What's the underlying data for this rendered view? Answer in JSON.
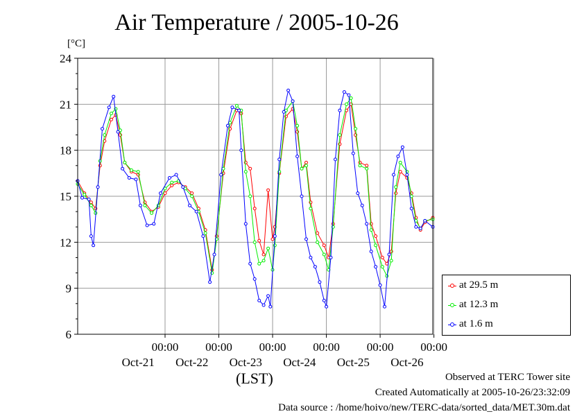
{
  "title": "Air Temperature / 2005-10-26",
  "unit_label": "[°C]",
  "xlabel": "(LST)",
  "footer": {
    "line1": "Observed at TERC Tower site",
    "line2": "Created Automatically at 2005-10-26/23:32:09",
    "line3": "Data source : /home/hoivo/new/TERC-data/sorted_data/MET.30m.dat"
  },
  "colors": {
    "s1": "#ff0000",
    "s2": "#00ee00",
    "s3": "#0000ff",
    "grid": "#999999"
  },
  "chart_data": {
    "type": "line",
    "title": "Air Temperature / 2005-10-26",
    "xlabel": "(LST)",
    "ylabel": "[°C]",
    "ylim": [
      6,
      24
    ],
    "yticks": [
      6,
      9,
      12,
      15,
      18,
      21,
      24
    ],
    "xlim": [
      "2005-10-20T09:00",
      "2005-10-26T23:30"
    ],
    "xticks": [
      {
        "x": "2005-10-22T00:00",
        "time": "00:00",
        "date": "Oct-21"
      },
      {
        "x": "2005-10-23T00:00",
        "time": "00:00",
        "date": "Oct-22"
      },
      {
        "x": "2005-10-24T00:00",
        "time": "00:00",
        "date": "Oct-23"
      },
      {
        "x": "2005-10-25T00:00",
        "time": "00:00",
        "date": "Oct-24"
      },
      {
        "x": "2005-10-26T00:00",
        "time": "00:00",
        "date": "Oct-25"
      },
      {
        "x": "2005-10-27T00:00",
        "time": "00:00",
        "date": "Oct-26"
      }
    ],
    "grid": true,
    "legend_position": "right",
    "series": [
      {
        "name": "at 29.5 m",
        "color": "#ff0000",
        "points": [
          [
            "2005-10-20T09:00",
            16.0
          ],
          [
            "2005-10-20T12:00",
            15.2
          ],
          [
            "2005-10-20T15:00",
            14.6
          ],
          [
            "2005-10-20T17:00",
            14.2
          ],
          [
            "2005-10-20T19:00",
            17.0
          ],
          [
            "2005-10-20T21:00",
            18.6
          ],
          [
            "2005-10-21T00:00",
            20.0
          ],
          [
            "2005-10-21T02:00",
            20.3
          ],
          [
            "2005-10-21T04:00",
            19.0
          ],
          [
            "2005-10-21T06:00",
            17.2
          ],
          [
            "2005-10-21T09:00",
            16.6
          ],
          [
            "2005-10-21T12:00",
            16.4
          ],
          [
            "2005-10-21T15:00",
            14.6
          ],
          [
            "2005-10-21T18:00",
            14.0
          ],
          [
            "2005-10-21T21:00",
            14.3
          ],
          [
            "2005-10-22T00:00",
            15.2
          ],
          [
            "2005-10-22T03:00",
            15.7
          ],
          [
            "2005-10-22T06:00",
            15.9
          ],
          [
            "2005-10-22T09:00",
            15.6
          ],
          [
            "2005-10-22T12:00",
            15.2
          ],
          [
            "2005-10-22T15:00",
            14.2
          ],
          [
            "2005-10-22T18:00",
            12.8
          ],
          [
            "2005-10-22T21:00",
            10.2
          ],
          [
            "2005-10-22T23:00",
            12.4
          ],
          [
            "2005-10-23T02:00",
            16.5
          ],
          [
            "2005-10-23T05:00",
            19.4
          ],
          [
            "2005-10-23T08:00",
            20.6
          ],
          [
            "2005-10-23T10:00",
            20.4
          ],
          [
            "2005-10-23T12:00",
            17.2
          ],
          [
            "2005-10-23T14:00",
            16.8
          ],
          [
            "2005-10-23T16:00",
            14.2
          ],
          [
            "2005-10-23T18:00",
            12.1
          ],
          [
            "2005-10-23T20:00",
            11.2
          ],
          [
            "2005-10-23T22:00",
            15.4
          ],
          [
            "2005-10-24T00:00",
            12.2
          ],
          [
            "2005-10-24T01:00",
            13.0
          ],
          [
            "2005-10-24T03:00",
            16.5
          ],
          [
            "2005-10-24T06:00",
            20.2
          ],
          [
            "2005-10-24T09:00",
            20.7
          ],
          [
            "2005-10-24T11:00",
            19.2
          ],
          [
            "2005-10-24T13:00",
            16.8
          ],
          [
            "2005-10-24T15:00",
            17.2
          ],
          [
            "2005-10-24T17:00",
            14.6
          ],
          [
            "2005-10-24T20:00",
            12.6
          ],
          [
            "2005-10-24T23:00",
            11.8
          ],
          [
            "2005-10-25T01:00",
            11.0
          ],
          [
            "2005-10-25T03:00",
            13.2
          ],
          [
            "2005-10-25T06:00",
            18.4
          ],
          [
            "2005-10-25T09:00",
            20.6
          ],
          [
            "2005-10-25T11:00",
            21.0
          ],
          [
            "2005-10-25T13:00",
            19.0
          ],
          [
            "2005-10-25T15:00",
            17.2
          ],
          [
            "2005-10-25T18:00",
            17.0
          ],
          [
            "2005-10-25T20:00",
            13.2
          ],
          [
            "2005-10-25T22:00",
            12.4
          ],
          [
            "2005-10-26T01:00",
            11.0
          ],
          [
            "2005-10-26T03:00",
            10.6
          ],
          [
            "2005-10-26T05:00",
            11.4
          ],
          [
            "2005-10-26T07:00",
            15.2
          ],
          [
            "2005-10-26T09:00",
            16.6
          ],
          [
            "2005-10-26T12:00",
            16.2
          ],
          [
            "2005-10-26T14:00",
            15.2
          ],
          [
            "2005-10-26T16:00",
            13.6
          ],
          [
            "2005-10-26T18:00",
            12.8
          ],
          [
            "2005-10-26T20:00",
            13.3
          ],
          [
            "2005-10-26T23:30",
            13.6
          ]
        ]
      },
      {
        "name": "at 12.3 m",
        "color": "#00ee00",
        "points": [
          [
            "2005-10-20T09:00",
            15.8
          ],
          [
            "2005-10-20T12:00",
            15.1
          ],
          [
            "2005-10-20T15:00",
            14.4
          ],
          [
            "2005-10-20T17:00",
            13.9
          ],
          [
            "2005-10-20T19:00",
            17.3
          ],
          [
            "2005-10-20T21:00",
            19.0
          ],
          [
            "2005-10-21T00:00",
            20.4
          ],
          [
            "2005-10-21T02:00",
            20.7
          ],
          [
            "2005-10-21T04:00",
            19.3
          ],
          [
            "2005-10-21T06:00",
            17.2
          ],
          [
            "2005-10-21T09:00",
            16.7
          ],
          [
            "2005-10-21T12:00",
            16.6
          ],
          [
            "2005-10-21T15:00",
            14.4
          ],
          [
            "2005-10-21T18:00",
            13.9
          ],
          [
            "2005-10-21T21:00",
            14.4
          ],
          [
            "2005-10-22T00:00",
            15.5
          ],
          [
            "2005-10-22T03:00",
            15.9
          ],
          [
            "2005-10-22T06:00",
            16.0
          ],
          [
            "2005-10-22T09:00",
            15.5
          ],
          [
            "2005-10-22T12:00",
            15.0
          ],
          [
            "2005-10-22T15:00",
            14.0
          ],
          [
            "2005-10-22T18:00",
            12.6
          ],
          [
            "2005-10-22T21:00",
            10.0
          ],
          [
            "2005-10-22T23:00",
            12.2
          ],
          [
            "2005-10-23T02:00",
            16.8
          ],
          [
            "2005-10-23T05:00",
            19.8
          ],
          [
            "2005-10-23T08:00",
            20.9
          ],
          [
            "2005-10-23T10:00",
            20.6
          ],
          [
            "2005-10-23T12:00",
            16.6
          ],
          [
            "2005-10-23T14:00",
            15.0
          ],
          [
            "2005-10-23T16:00",
            12.0
          ],
          [
            "2005-10-23T18:00",
            10.6
          ],
          [
            "2005-10-23T20:00",
            10.8
          ],
          [
            "2005-10-23T22:00",
            11.6
          ],
          [
            "2005-10-24T00:00",
            10.2
          ],
          [
            "2005-10-24T01:00",
            11.8
          ],
          [
            "2005-10-24T03:00",
            16.6
          ],
          [
            "2005-10-24T06:00",
            20.6
          ],
          [
            "2005-10-24T09:00",
            21.2
          ],
          [
            "2005-10-24T11:00",
            19.6
          ],
          [
            "2005-10-24T13:00",
            16.8
          ],
          [
            "2005-10-24T15:00",
            17.0
          ],
          [
            "2005-10-24T17:00",
            14.2
          ],
          [
            "2005-10-24T20:00",
            12.0
          ],
          [
            "2005-10-24T23:00",
            11.2
          ],
          [
            "2005-10-25T01:00",
            10.2
          ],
          [
            "2005-10-25T03:00",
            13.0
          ],
          [
            "2005-10-25T06:00",
            19.0
          ],
          [
            "2005-10-25T09:00",
            21.0
          ],
          [
            "2005-10-25T11:00",
            21.4
          ],
          [
            "2005-10-25T13:00",
            19.4
          ],
          [
            "2005-10-25T15:00",
            17.0
          ],
          [
            "2005-10-25T18:00",
            16.8
          ],
          [
            "2005-10-25T20:00",
            12.8
          ],
          [
            "2005-10-25T22:00",
            11.8
          ],
          [
            "2005-10-26T01:00",
            10.4
          ],
          [
            "2005-10-26T03:00",
            9.8
          ],
          [
            "2005-10-26T05:00",
            10.8
          ],
          [
            "2005-10-26T07:00",
            15.6
          ],
          [
            "2005-10-26T09:00",
            17.2
          ],
          [
            "2005-10-26T12:00",
            16.6
          ],
          [
            "2005-10-26T14:00",
            15.0
          ],
          [
            "2005-10-26T16:00",
            13.4
          ],
          [
            "2005-10-26T18:00",
            12.9
          ],
          [
            "2005-10-26T20:00",
            13.4
          ],
          [
            "2005-10-26T23:30",
            13.5
          ]
        ]
      },
      {
        "name": "at 1.6 m",
        "color": "#0000ff",
        "points": [
          [
            "2005-10-20T09:00",
            16.0
          ],
          [
            "2005-10-20T11:00",
            14.9
          ],
          [
            "2005-10-20T14:00",
            14.8
          ],
          [
            "2005-10-20T15:00",
            12.4
          ],
          [
            "2005-10-20T16:00",
            11.8
          ],
          [
            "2005-10-20T18:00",
            15.6
          ],
          [
            "2005-10-20T20:00",
            19.4
          ],
          [
            "2005-10-20T23:00",
            20.8
          ],
          [
            "2005-10-21T01:00",
            21.5
          ],
          [
            "2005-10-21T03:00",
            19.2
          ],
          [
            "2005-10-21T05:00",
            16.8
          ],
          [
            "2005-10-21T08:00",
            16.2
          ],
          [
            "2005-10-21T11:00",
            16.1
          ],
          [
            "2005-10-21T13:00",
            14.4
          ],
          [
            "2005-10-21T16:00",
            13.1
          ],
          [
            "2005-10-21T19:00",
            13.2
          ],
          [
            "2005-10-21T22:00",
            15.2
          ],
          [
            "2005-10-22T02:00",
            16.2
          ],
          [
            "2005-10-22T05:00",
            16.4
          ],
          [
            "2005-10-22T08:00",
            15.6
          ],
          [
            "2005-10-22T11:00",
            14.4
          ],
          [
            "2005-10-22T14:00",
            14.0
          ],
          [
            "2005-10-22T17:00",
            12.4
          ],
          [
            "2005-10-22T20:00",
            9.4
          ],
          [
            "2005-10-22T22:00",
            11.2
          ],
          [
            "2005-10-23T01:00",
            16.4
          ],
          [
            "2005-10-23T04:00",
            19.6
          ],
          [
            "2005-10-23T06:00",
            20.8
          ],
          [
            "2005-10-23T09:00",
            20.6
          ],
          [
            "2005-10-23T10:00",
            18.0
          ],
          [
            "2005-10-23T12:00",
            13.2
          ],
          [
            "2005-10-23T14:00",
            10.6
          ],
          [
            "2005-10-23T16:00",
            9.6
          ],
          [
            "2005-10-23T18:00",
            8.2
          ],
          [
            "2005-10-23T20:00",
            7.9
          ],
          [
            "2005-10-23T22:00",
            8.5
          ],
          [
            "2005-10-23T23:00",
            7.8
          ],
          [
            "2005-10-24T01:00",
            12.4
          ],
          [
            "2005-10-24T03:00",
            17.4
          ],
          [
            "2005-10-24T05:00",
            20.5
          ],
          [
            "2005-10-24T07:00",
            21.9
          ],
          [
            "2005-10-24T09:00",
            21.2
          ],
          [
            "2005-10-24T11:00",
            17.6
          ],
          [
            "2005-10-24T13:00",
            15.0
          ],
          [
            "2005-10-24T15:00",
            12.2
          ],
          [
            "2005-10-24T17:00",
            11.0
          ],
          [
            "2005-10-24T19:00",
            10.4
          ],
          [
            "2005-10-24T21:00",
            9.4
          ],
          [
            "2005-10-24T23:00",
            8.2
          ],
          [
            "2005-10-25T00:00",
            7.8
          ],
          [
            "2005-10-25T02:00",
            11.0
          ],
          [
            "2005-10-25T04:00",
            17.4
          ],
          [
            "2005-10-25T06:00",
            20.6
          ],
          [
            "2005-10-25T08:00",
            21.8
          ],
          [
            "2005-10-25T10:00",
            21.6
          ],
          [
            "2005-10-25T12:00",
            17.8
          ],
          [
            "2005-10-25T14:00",
            15.2
          ],
          [
            "2005-10-25T16:00",
            14.4
          ],
          [
            "2005-10-25T18:00",
            13.2
          ],
          [
            "2005-10-25T20:00",
            11.4
          ],
          [
            "2005-10-25T22:00",
            10.4
          ],
          [
            "2005-10-26T00:00",
            9.2
          ],
          [
            "2005-10-26T02:00",
            7.8
          ],
          [
            "2005-10-26T04:00",
            11.2
          ],
          [
            "2005-10-26T06:00",
            16.4
          ],
          [
            "2005-10-26T08:00",
            17.6
          ],
          [
            "2005-10-26T10:00",
            18.2
          ],
          [
            "2005-10-26T12:00",
            16.4
          ],
          [
            "2005-10-26T14:00",
            14.2
          ],
          [
            "2005-10-26T16:00",
            13.0
          ],
          [
            "2005-10-26T18:00",
            12.9
          ],
          [
            "2005-10-26T20:00",
            13.4
          ],
          [
            "2005-10-26T23:30",
            13.0
          ]
        ]
      }
    ]
  }
}
